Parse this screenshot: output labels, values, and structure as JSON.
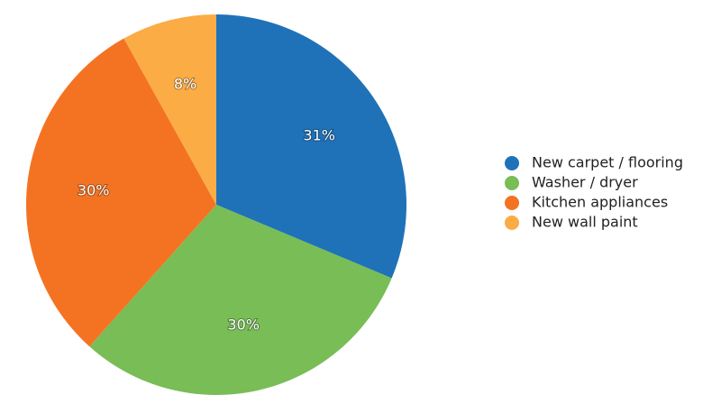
{
  "chart_data": {
    "type": "pie",
    "categories": [
      "New carpet / flooring",
      "Washer / dryer",
      "Kitchen appliances",
      "New wall paint"
    ],
    "values": [
      31,
      30,
      30,
      8
    ],
    "value_labels": [
      "31%",
      "30%",
      "30%",
      "8%"
    ],
    "colors": [
      "#1f72b8",
      "#78bd56",
      "#f47322",
      "#fbac45"
    ],
    "legend": "right"
  }
}
